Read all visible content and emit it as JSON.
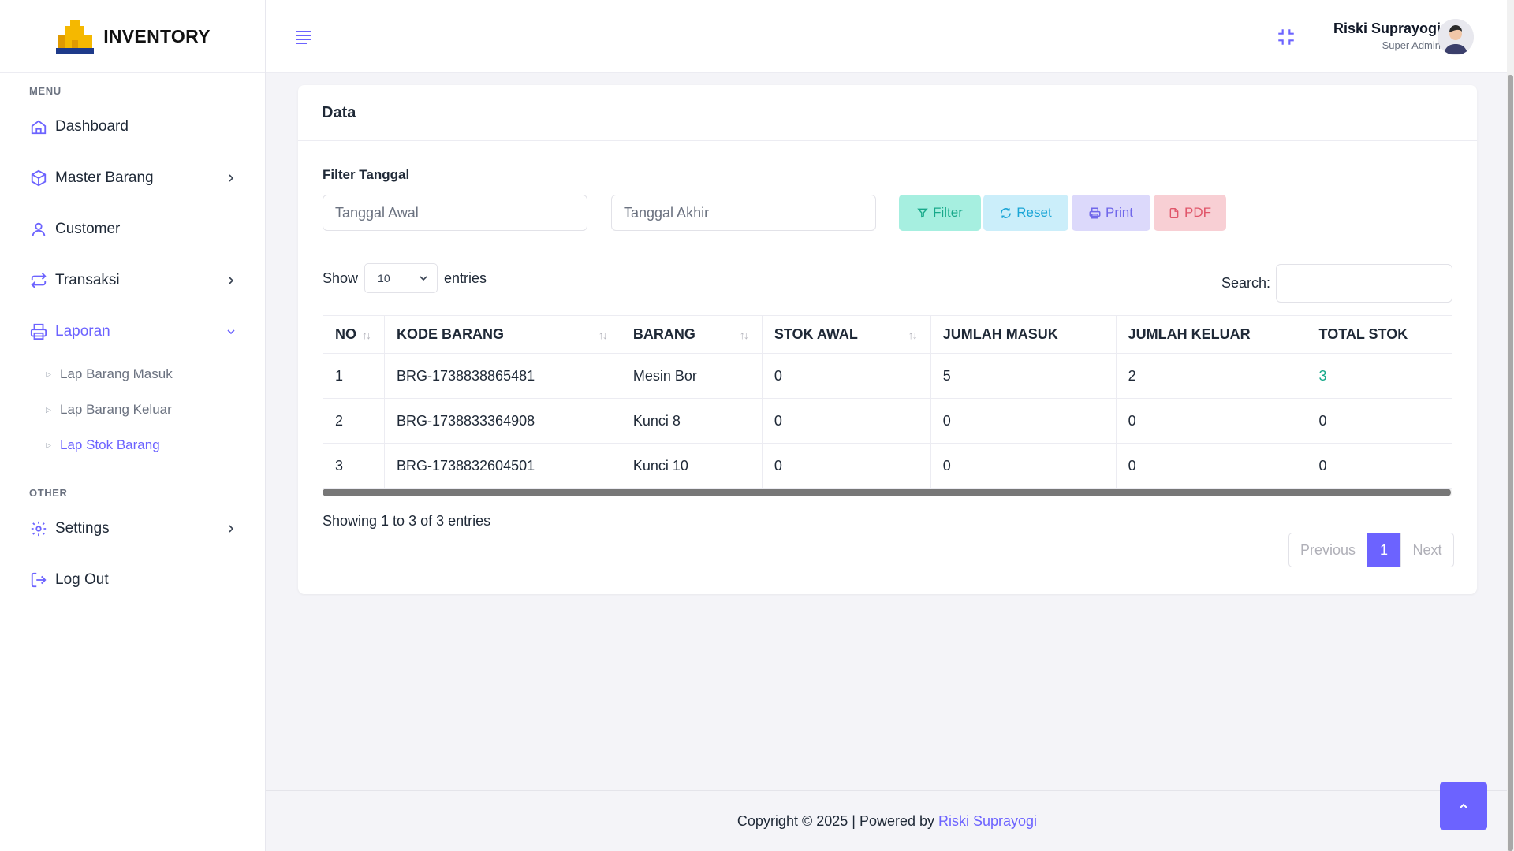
{
  "brand": {
    "name": "INVENTORY"
  },
  "sidebar": {
    "menu_heading": "MENU",
    "other_heading": "OTHER",
    "items": [
      {
        "label": "Dashboard",
        "icon": "home-icon"
      },
      {
        "label": "Master Barang",
        "icon": "box-icon"
      },
      {
        "label": "Customer",
        "icon": "user-icon"
      },
      {
        "label": "Transaksi",
        "icon": "arrows-icon"
      },
      {
        "label": "Laporan",
        "icon": "printer-icon"
      }
    ],
    "sub_items": [
      {
        "label": "Lap Barang Masuk"
      },
      {
        "label": "Lap Barang Keluar"
      },
      {
        "label": "Lap Stok Barang"
      }
    ],
    "other_items": [
      {
        "label": "Settings",
        "icon": "gear-icon"
      },
      {
        "label": "Log Out",
        "icon": "logout-icon"
      }
    ]
  },
  "header": {
    "user_name": "Riski Suprayogi",
    "user_role": "Super Admin"
  },
  "card": {
    "title": "Data",
    "filter_label": "Filter Tanggal",
    "start_placeholder": "Tanggal Awal",
    "end_placeholder": "Tanggal Akhir",
    "buttons": {
      "filter": "Filter",
      "reset": "Reset",
      "print": "Print",
      "pdf": "PDF"
    },
    "show_label": "Show",
    "entries_label": "entries",
    "page_length": "10",
    "search_label": "Search:"
  },
  "table": {
    "columns": [
      "NO",
      "KODE BARANG",
      "BARANG",
      "STOK AWAL",
      "JUMLAH MASUK",
      "JUMLAH KELUAR",
      "TOTAL STOK"
    ],
    "rows": [
      [
        "1",
        "BRG-1738838865481",
        "Mesin Bor",
        "0",
        "5",
        "2",
        "3"
      ],
      [
        "2",
        "BRG-1738833364908",
        "Kunci 8",
        "0",
        "0",
        "0",
        "0"
      ],
      [
        "3",
        "BRG-1738832604501",
        "Kunci 10",
        "0",
        "0",
        "0",
        "0"
      ]
    ]
  },
  "info": "Showing 1 to 3 of 3 entries",
  "pagination": {
    "previous": "Previous",
    "current": "1",
    "next": "Next"
  },
  "footer": {
    "text": "Copyright © 2025 | Powered by",
    "link": "Riski Suprayogi"
  },
  "colors": {
    "accent": "#6c63ff",
    "teal": "#18a98a"
  }
}
